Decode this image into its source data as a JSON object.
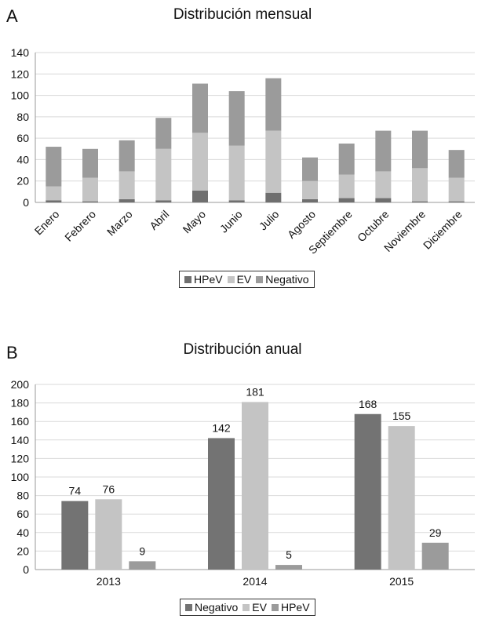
{
  "chart_data": [
    {
      "panel": "A",
      "type": "bar",
      "stacked": true,
      "title": "Distribución mensual",
      "categories": [
        "Enero",
        "Febrero",
        "Marzo",
        "Abril",
        "Mayo",
        "Junio",
        "Julio",
        "Agosto",
        "Septiembre",
        "Octubre",
        "Noviembre",
        "Diciembre"
      ],
      "series": [
        {
          "name": "HPeV",
          "color": "#6f6f6f",
          "values": [
            2,
            1,
            3,
            2,
            11,
            2,
            9,
            3,
            4,
            4,
            1,
            1
          ]
        },
        {
          "name": "EV",
          "color": "#c4c4c4",
          "values": [
            13,
            22,
            26,
            48,
            54,
            51,
            58,
            17,
            22,
            25,
            31,
            22
          ]
        },
        {
          "name": "Negativo",
          "color": "#9b9b9b",
          "values": [
            37,
            27,
            29,
            29,
            46,
            51,
            49,
            22,
            29,
            38,
            35,
            26
          ]
        }
      ],
      "yticks": [
        "0",
        "20",
        "40",
        "60",
        "80",
        "100",
        "120",
        "140"
      ],
      "ylim": [
        0,
        140
      ],
      "grid": true,
      "legend_position": "bottom",
      "legend_order": [
        "HPeV",
        "EV",
        "Negativo"
      ]
    },
    {
      "panel": "B",
      "type": "bar",
      "stacked": false,
      "title": "Distribución anual",
      "categories": [
        "2013",
        "2014",
        "2015"
      ],
      "series": [
        {
          "name": "Negativo",
          "color": "#737373",
          "values": [
            74,
            142,
            168
          ]
        },
        {
          "name": "EV",
          "color": "#c4c4c4",
          "values": [
            76,
            181,
            155
          ]
        },
        {
          "name": "HPeV",
          "color": "#9b9b9b",
          "values": [
            9,
            5,
            29
          ]
        }
      ],
      "data_labels": [
        "74",
        "76",
        "9",
        "142",
        "181",
        "5",
        "168",
        "155",
        "29"
      ],
      "yticks": [
        "0",
        "20",
        "40",
        "60",
        "80",
        "100",
        "120",
        "140",
        "160",
        "180",
        "200"
      ],
      "ylim": [
        0,
        200
      ],
      "grid": true,
      "legend_position": "bottom",
      "legend_order": [
        "Negativo",
        "EV",
        "HPeV"
      ]
    }
  ]
}
